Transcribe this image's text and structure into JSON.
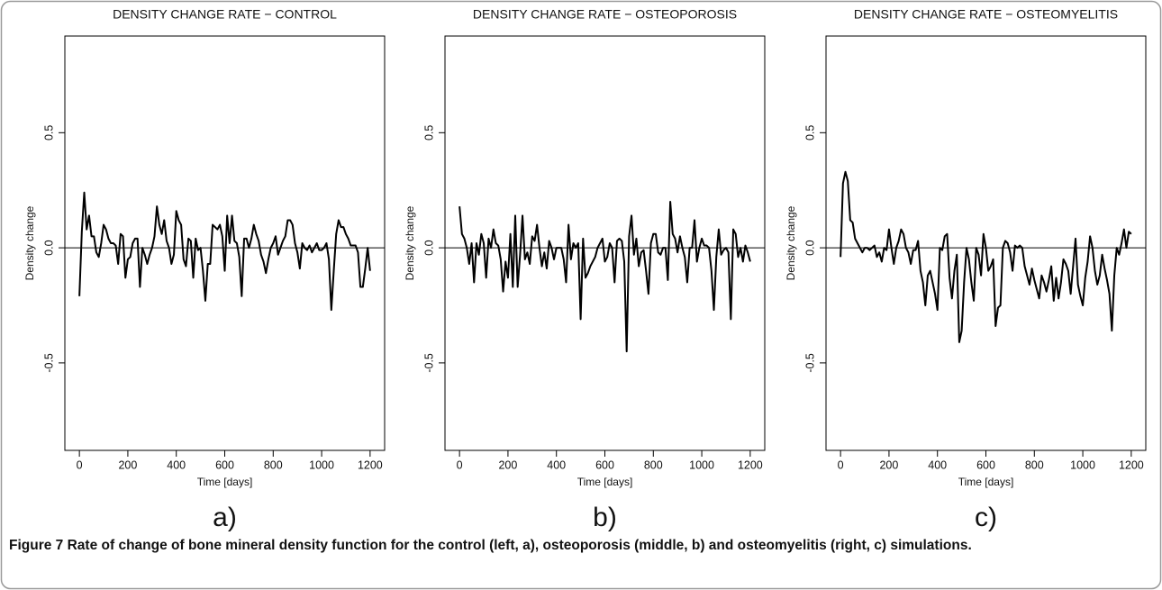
{
  "chart_data": [
    {
      "type": "line",
      "title": "DENSITY CHANGE RATE − CONTROL",
      "x_label": "Time [days]",
      "y_label": "Density change",
      "x": [
        0,
        10,
        20,
        30,
        40,
        50,
        60,
        70,
        80,
        90,
        100,
        110,
        120,
        130,
        140,
        150,
        160,
        170,
        180,
        190,
        200,
        210,
        220,
        230,
        240,
        250,
        260,
        270,
        280,
        290,
        300,
        310,
        320,
        330,
        340,
        350,
        360,
        370,
        380,
        390,
        400,
        410,
        420,
        430,
        440,
        450,
        460,
        470,
        480,
        490,
        500,
        510,
        520,
        530,
        540,
        550,
        560,
        570,
        580,
        590,
        600,
        610,
        620,
        630,
        640,
        650,
        660,
        670,
        680,
        690,
        700,
        710,
        720,
        730,
        740,
        750,
        760,
        770,
        780,
        790,
        800,
        810,
        820,
        830,
        840,
        850,
        860,
        870,
        880,
        890,
        900,
        910,
        920,
        930,
        940,
        950,
        960,
        970,
        980,
        990,
        1000,
        1010,
        1020,
        1030,
        1040,
        1050,
        1060,
        1070,
        1080,
        1090,
        1100,
        1110,
        1120,
        1130,
        1140,
        1150,
        1160,
        1170,
        1180,
        1190,
        1200
      ],
      "values": [
        -0.21,
        0.07,
        0.24,
        0.08,
        0.14,
        0.05,
        0.05,
        -0.02,
        -0.04,
        0.02,
        0.1,
        0.08,
        0.04,
        0.02,
        0.02,
        0.01,
        -0.07,
        0.06,
        0.05,
        -0.13,
        -0.05,
        -0.04,
        0.02,
        0.04,
        0.04,
        -0.17,
        0.0,
        -0.03,
        -0.07,
        -0.03,
        0.0,
        0.05,
        0.18,
        0.1,
        0.06,
        0.12,
        0.03,
        0.0,
        -0.07,
        -0.03,
        0.16,
        0.12,
        0.1,
        -0.05,
        -0.08,
        0.04,
        0.03,
        -0.13,
        0.04,
        -0.01,
        0.0,
        -0.1,
        -0.23,
        -0.07,
        -0.07,
        0.1,
        0.09,
        0.08,
        0.1,
        0.05,
        -0.1,
        0.14,
        0.02,
        0.14,
        0.03,
        0.02,
        -0.04,
        -0.21,
        0.04,
        0.04,
        0.0,
        0.04,
        0.1,
        0.06,
        0.03,
        -0.03,
        -0.06,
        -0.11,
        -0.05,
        0.0,
        0.02,
        0.05,
        -0.03,
        0.0,
        0.03,
        0.05,
        0.12,
        0.12,
        0.1,
        0.02,
        -0.02,
        -0.09,
        0.02,
        0.0,
        -0.01,
        0.01,
        -0.02,
        0.0,
        0.02,
        -0.01,
        -0.01,
        0.0,
        0.02,
        -0.05,
        -0.27,
        -0.1,
        0.06,
        0.12,
        0.09,
        0.09,
        0.06,
        0.04,
        0.01,
        0.01,
        0.01,
        -0.02,
        -0.17,
        -0.17,
        -0.09,
        0.0,
        -0.1
      ],
      "color": "#000000",
      "reference_line": 0,
      "xlim": [
        -60,
        1260
      ],
      "xticks": [
        0,
        200,
        400,
        600,
        800,
        1000,
        1200
      ],
      "ylim": [
        -0.88,
        0.92
      ],
      "yticks": [
        -0.5,
        {
          "value": 0,
          "label": "0.0"
        },
        0.5
      ]
    },
    {
      "type": "line",
      "title": "DENSITY CHANGE RATE − OSTEOPOROSIS",
      "x_label": "Time [days]",
      "y_label": "Density change",
      "x": [
        0,
        10,
        20,
        30,
        40,
        50,
        60,
        70,
        80,
        90,
        100,
        110,
        120,
        130,
        140,
        150,
        160,
        170,
        180,
        190,
        200,
        210,
        220,
        230,
        240,
        250,
        260,
        270,
        280,
        290,
        300,
        310,
        320,
        330,
        340,
        350,
        360,
        370,
        380,
        390,
        400,
        410,
        420,
        430,
        440,
        450,
        460,
        470,
        480,
        490,
        500,
        510,
        520,
        530,
        540,
        550,
        560,
        570,
        580,
        590,
        600,
        610,
        620,
        630,
        640,
        650,
        660,
        670,
        680,
        690,
        700,
        710,
        720,
        730,
        740,
        750,
        760,
        770,
        780,
        790,
        800,
        810,
        820,
        830,
        840,
        850,
        860,
        870,
        880,
        890,
        900,
        910,
        920,
        930,
        940,
        950,
        960,
        970,
        980,
        990,
        1000,
        1010,
        1020,
        1030,
        1040,
        1050,
        1060,
        1070,
        1080,
        1090,
        1100,
        1110,
        1120,
        1130,
        1140,
        1150,
        1160,
        1170,
        1180,
        1190,
        1200
      ],
      "values": [
        0.18,
        0.06,
        0.04,
        0.0,
        -0.07,
        0.02,
        -0.15,
        0.02,
        -0.03,
        0.06,
        0.02,
        -0.13,
        0.04,
        0.0,
        0.08,
        0.02,
        0.01,
        -0.05,
        -0.19,
        -0.06,
        -0.13,
        0.06,
        -0.17,
        0.14,
        -0.17,
        -0.03,
        0.14,
        -0.05,
        -0.02,
        -0.07,
        0.05,
        0.03,
        0.1,
        0.0,
        -0.08,
        -0.02,
        -0.09,
        0.03,
        0.0,
        -0.05,
        0.0,
        0.0,
        0.0,
        -0.05,
        -0.15,
        0.1,
        -0.05,
        0.02,
        0.0,
        0.02,
        -0.31,
        0.04,
        -0.13,
        -0.11,
        -0.08,
        -0.06,
        -0.04,
        0.0,
        0.02,
        0.04,
        -0.06,
        -0.04,
        0.02,
        0.0,
        -0.15,
        0.03,
        0.04,
        0.03,
        -0.06,
        -0.45,
        0.05,
        0.14,
        -0.03,
        0.04,
        -0.08,
        -0.02,
        -0.01,
        -0.1,
        -0.2,
        0.02,
        0.06,
        0.06,
        -0.02,
        -0.03,
        0.0,
        0.0,
        -0.14,
        0.2,
        0.06,
        0.04,
        -0.02,
        0.05,
        0.0,
        -0.04,
        -0.15,
        0.0,
        0.0,
        0.12,
        -0.06,
        0.0,
        0.04,
        0.01,
        0.01,
        0.0,
        -0.1,
        -0.27,
        -0.04,
        0.08,
        -0.03,
        -0.01,
        0.0,
        -0.02,
        -0.31,
        0.08,
        0.06,
        -0.04,
        0.0,
        -0.06,
        0.01,
        -0.02,
        -0.06
      ],
      "color": "#000000",
      "reference_line": 0,
      "xlim": [
        -60,
        1260
      ],
      "xticks": [
        0,
        200,
        400,
        600,
        800,
        1000,
        1200
      ],
      "ylim": [
        -0.88,
        0.92
      ],
      "yticks": [
        -0.5,
        {
          "value": 0,
          "label": "0.0"
        },
        0.5
      ]
    },
    {
      "type": "line",
      "title": "DENSITY CHANGE RATE − OSTEOMYELITIS",
      "x_label": "Time [days]",
      "y_label": "Density change",
      "x": [
        0,
        10,
        20,
        30,
        40,
        50,
        60,
        70,
        80,
        90,
        100,
        110,
        120,
        130,
        140,
        150,
        160,
        170,
        180,
        190,
        200,
        210,
        220,
        230,
        240,
        250,
        260,
        270,
        280,
        290,
        300,
        310,
        320,
        330,
        340,
        350,
        360,
        370,
        380,
        390,
        400,
        410,
        420,
        430,
        440,
        450,
        460,
        470,
        480,
        490,
        500,
        510,
        520,
        530,
        540,
        550,
        560,
        570,
        580,
        590,
        600,
        610,
        620,
        630,
        640,
        650,
        660,
        670,
        680,
        690,
        700,
        710,
        720,
        730,
        740,
        750,
        760,
        770,
        780,
        790,
        800,
        810,
        820,
        830,
        840,
        850,
        860,
        870,
        880,
        890,
        900,
        910,
        920,
        930,
        940,
        950,
        960,
        970,
        980,
        990,
        1000,
        1010,
        1020,
        1030,
        1040,
        1050,
        1060,
        1070,
        1080,
        1090,
        1100,
        1110,
        1120,
        1130,
        1140,
        1150,
        1160,
        1170,
        1180,
        1190,
        1200
      ],
      "values": [
        -0.04,
        0.28,
        0.33,
        0.29,
        0.12,
        0.11,
        0.04,
        0.02,
        0.0,
        -0.02,
        0.0,
        0.0,
        -0.01,
        0.0,
        0.01,
        -0.04,
        -0.02,
        -0.06,
        0.0,
        -0.01,
        0.08,
        0.0,
        -0.07,
        0.0,
        0.03,
        0.08,
        0.06,
        0.0,
        -0.02,
        -0.07,
        -0.01,
        -0.01,
        0.03,
        -0.1,
        -0.15,
        -0.25,
        -0.12,
        -0.1,
        -0.15,
        -0.2,
        -0.27,
        0.0,
        -0.01,
        0.05,
        0.06,
        -0.13,
        -0.22,
        -0.1,
        -0.03,
        -0.41,
        -0.36,
        -0.15,
        0.0,
        -0.05,
        -0.15,
        -0.23,
        0.0,
        -0.03,
        -0.12,
        0.06,
        0.0,
        -0.1,
        -0.08,
        -0.05,
        -0.34,
        -0.26,
        -0.25,
        0.0,
        0.03,
        0.02,
        -0.02,
        -0.1,
        0.01,
        0.0,
        0.01,
        0.0,
        -0.08,
        -0.12,
        -0.16,
        -0.09,
        -0.14,
        -0.18,
        -0.22,
        -0.12,
        -0.15,
        -0.19,
        -0.14,
        -0.08,
        -0.23,
        -0.13,
        -0.22,
        -0.15,
        -0.05,
        -0.07,
        -0.1,
        -0.2,
        -0.08,
        0.04,
        -0.16,
        -0.21,
        -0.25,
        -0.13,
        -0.06,
        0.05,
        0.0,
        -0.1,
        -0.16,
        -0.12,
        -0.03,
        -0.09,
        -0.14,
        -0.2,
        -0.36,
        -0.12,
        0.0,
        -0.03,
        0.02,
        0.08,
        0.0,
        0.07,
        0.06
      ],
      "color": "#000000",
      "reference_line": 0,
      "xlim": [
        -60,
        1260
      ],
      "xticks": [
        0,
        200,
        400,
        600,
        800,
        1000,
        1200
      ],
      "ylim": [
        -0.88,
        0.92
      ],
      "yticks": [
        -0.5,
        {
          "value": 0,
          "label": "0.0"
        },
        0.5
      ]
    }
  ],
  "panel_labels": [
    "a)",
    "b)",
    "c)"
  ],
  "caption": {
    "label": "Figure 7",
    "text": "Rate of change of bone mineral density function for the control (left, a), osteoporosis (middle, b) and osteomyelitis (right, c) simulations."
  }
}
